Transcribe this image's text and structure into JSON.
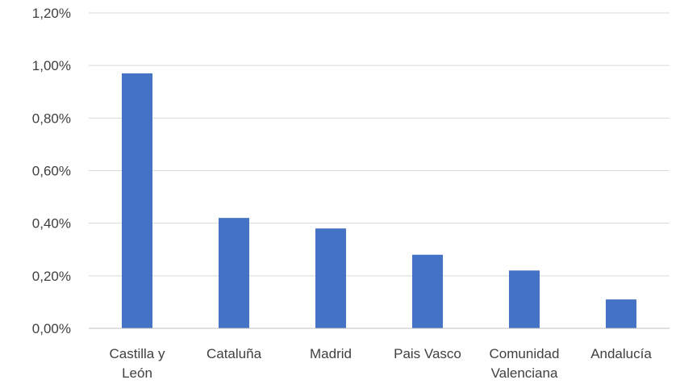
{
  "chart_data": {
    "type": "bar",
    "categories": [
      [
        "Castilla y",
        "León"
      ],
      [
        "Cataluña"
      ],
      [
        "Madrid"
      ],
      [
        "Pais Vasco"
      ],
      [
        "Comunidad",
        "Valenciana"
      ],
      [
        "Andalucía"
      ]
    ],
    "values": [
      0.97,
      0.42,
      0.38,
      0.28,
      0.22,
      0.11
    ],
    "y_ticks": [
      {
        "value": 0.0,
        "label": "0,00%"
      },
      {
        "value": 0.2,
        "label": "0,20%"
      },
      {
        "value": 0.4,
        "label": "0,40%"
      },
      {
        "value": 0.6,
        "label": "0,60%"
      },
      {
        "value": 0.8,
        "label": "0,80%"
      },
      {
        "value": 1.0,
        "label": "1,00%"
      },
      {
        "value": 1.2,
        "label": "1,20%"
      }
    ],
    "ylim": [
      0,
      1.2
    ],
    "grid": true,
    "legend": "none",
    "bar_color": "#4472c4"
  }
}
